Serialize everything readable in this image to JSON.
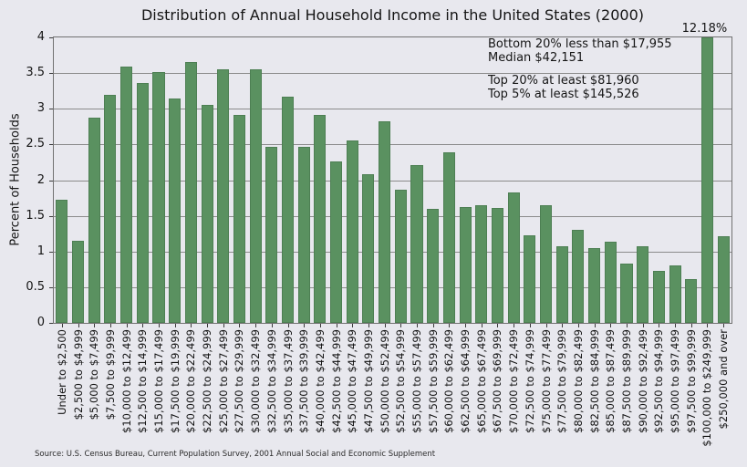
{
  "source": "Source: U.S. Census Bureau, Current Population Survey, 2001 Annual Social and Economic Supplement",
  "colors": {
    "bar": "#5a9160",
    "background": "#e8e8ee",
    "grid": "#8b8b8b",
    "spine": "#717171",
    "text": "#151515"
  },
  "chart_data": {
    "type": "bar",
    "title": "Distribution of Annual Household Income in the United States (2000)",
    "xlabel": "",
    "ylabel": "Percent of Households",
    "ylim": [
      0,
      4
    ],
    "yticks": [
      0,
      0.5,
      1,
      1.5,
      2,
      2.5,
      3,
      3.5,
      4
    ],
    "grid": true,
    "legend": false,
    "note": "Bar for $100,000 to $249,999 is 12.18% and is clipped at the top of the y-axis",
    "categories": [
      "Under to $2,500",
      "$2,500 to $4,999",
      "$5,000 to $7,499",
      "$7,500 to $9,999",
      "$10,000 to $12,499",
      "$12,500 to $14,999",
      "$15,000 to $17,499",
      "$17,500 to $19,999",
      "$20,000 to $22,499",
      "$22,500 to $24,999",
      "$25,000 to $27,499",
      "$27,500 to $29,999",
      "$30,000 to $32,499",
      "$32,500 to $34,999",
      "$35,000 to $37,499",
      "$37,500 to $39,999",
      "$40,000 to $42,499",
      "$42,500 to $44,999",
      "$45,000 to $47,499",
      "$47,500 to $49,999",
      "$50,000 to $52,499",
      "$52,500 to $54,999",
      "$55,000 to $57,499",
      "$57,500 to $59,999",
      "$60,000 to $62,499",
      "$62,500 to $64,999",
      "$65,000 to $67,499",
      "$67,500 to $69,999",
      "$70,000 to $72,499",
      "$72,500 to $74,999",
      "$75,000 to $77,499",
      "$77,500 to $79,999",
      "$80,000 to $82,499",
      "$82,500 to $84,999",
      "$85,000 to $87,499",
      "$87,500 to $89,999",
      "$90,000 to $92,499",
      "$92,500 to $94,999",
      "$95,000 to $97,499",
      "$97,500 to $99,999",
      "$100,000 to $249,999",
      "$250,000 and over"
    ],
    "values": [
      1.72,
      1.15,
      2.88,
      3.2,
      3.59,
      3.36,
      3.52,
      3.15,
      3.66,
      3.05,
      3.55,
      2.92,
      3.55,
      2.47,
      3.17,
      2.47,
      2.91,
      2.26,
      2.55,
      2.08,
      2.82,
      1.86,
      2.21,
      1.6,
      2.39,
      1.62,
      1.65,
      1.61,
      1.83,
      1.23,
      1.65,
      1.08,
      1.31,
      1.05,
      1.14,
      0.83,
      1.07,
      0.73,
      0.8,
      0.62,
      12.18,
      1.22
    ],
    "value_labels": [
      {
        "index": 40,
        "text": "12.18%"
      }
    ],
    "annotations": [
      "Bottom 20% less than $17,955",
      "Median $42,151",
      "Top 20% at least $81,960",
      "Top 5% at least $145,526"
    ]
  }
}
